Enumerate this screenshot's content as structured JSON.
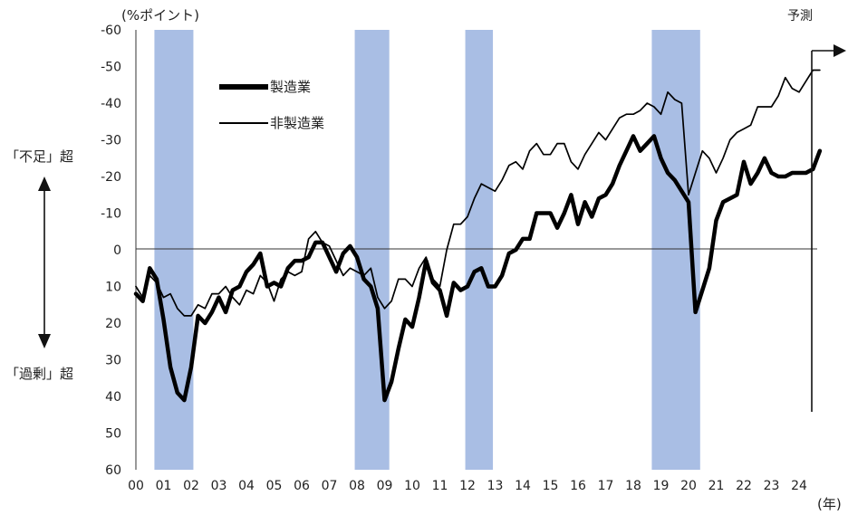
{
  "chart_data": {
    "type": "line",
    "y_unit_label": "(%ポイント)",
    "x_unit_label": "(年)",
    "forecast_label": "予測",
    "side_label_top": "「不足」超",
    "side_label_bottom": "「過剰」超",
    "ylim": [
      60,
      -60
    ],
    "y_ticks": [
      "-60",
      "-50",
      "-40",
      "-30",
      "-20",
      "-10",
      "0",
      "10",
      "20",
      "30",
      "40",
      "50",
      "60"
    ],
    "x_ticks": [
      "00",
      "01",
      "02",
      "03",
      "04",
      "05",
      "06",
      "07",
      "08",
      "09",
      "10",
      "11",
      "12",
      "13",
      "14",
      "15",
      "16",
      "17",
      "18",
      "19",
      "20",
      "21",
      "22",
      "23",
      "24"
    ],
    "recession_bands": [
      [
        2000.67,
        2002.08
      ],
      [
        2007.92,
        2009.17
      ],
      [
        2011.92,
        2012.92
      ],
      [
        2018.67,
        2020.42
      ]
    ],
    "legend_position": "upper-left",
    "series": [
      {
        "name": "製造業",
        "line_style": "thick",
        "x": [
          2000.0,
          2000.25,
          2000.5,
          2000.75,
          2001.0,
          2001.25,
          2001.5,
          2001.75,
          2002.0,
          2002.25,
          2002.5,
          2002.75,
          2003.0,
          2003.25,
          2003.5,
          2003.75,
          2004.0,
          2004.25,
          2004.5,
          2004.75,
          2005.0,
          2005.25,
          2005.5,
          2005.75,
          2006.0,
          2006.25,
          2006.5,
          2006.75,
          2007.0,
          2007.25,
          2007.5,
          2007.75,
          2008.0,
          2008.25,
          2008.5,
          2008.75,
          2009.0,
          2009.25,
          2009.5,
          2009.75,
          2010.0,
          2010.25,
          2010.5,
          2010.75,
          2011.0,
          2011.25,
          2011.5,
          2011.75,
          2012.0,
          2012.25,
          2012.5,
          2012.75,
          2013.0,
          2013.25,
          2013.5,
          2013.75,
          2014.0,
          2014.25,
          2014.5,
          2014.75,
          2015.0,
          2015.25,
          2015.5,
          2015.75,
          2016.0,
          2016.25,
          2016.5,
          2016.75,
          2017.0,
          2017.25,
          2017.5,
          2017.75,
          2018.0,
          2018.25,
          2018.5,
          2018.75,
          2019.0,
          2019.25,
          2019.5,
          2019.75,
          2020.0,
          2020.25,
          2020.5,
          2020.75,
          2021.0,
          2021.25,
          2021.5,
          2021.75,
          2022.0,
          2022.25,
          2022.5,
          2022.75,
          2023.0,
          2023.25,
          2023.5,
          2023.75,
          2024.0,
          2024.25,
          2024.5,
          2024.75
        ],
        "y": [
          12,
          14,
          5,
          8,
          19,
          32,
          39,
          41,
          32,
          18,
          20,
          17,
          13,
          17,
          11,
          10,
          6,
          4,
          1,
          10,
          9,
          10,
          5,
          3,
          3,
          2,
          -2,
          -2,
          2,
          6,
          1,
          -1,
          2,
          8,
          10,
          16,
          41,
          36,
          27,
          19,
          21,
          13,
          3,
          9,
          11,
          18,
          9,
          11,
          10,
          6,
          5,
          10,
          10,
          7,
          1,
          0,
          -3,
          -3,
          -10,
          -10,
          -10,
          -6,
          -10,
          -15,
          -7,
          -13,
          -9,
          -14,
          -15,
          -18,
          -23,
          -27,
          -31,
          -27,
          -29,
          -31,
          -25,
          -21,
          -19,
          -16,
          -13,
          17,
          11,
          5,
          -8,
          -13,
          -14,
          -15,
          -24,
          -18,
          -21,
          -25,
          -21,
          -20,
          -20,
          -21,
          -21,
          -21,
          -22,
          -27
        ]
      },
      {
        "name": "非製造業",
        "line_style": "thin",
        "x": [
          2000.0,
          2000.25,
          2000.5,
          2000.75,
          2001.0,
          2001.25,
          2001.5,
          2001.75,
          2002.0,
          2002.25,
          2002.5,
          2002.75,
          2003.0,
          2003.25,
          2003.5,
          2003.75,
          2004.0,
          2004.25,
          2004.5,
          2004.75,
          2005.0,
          2005.25,
          2005.5,
          2005.75,
          2006.0,
          2006.25,
          2006.5,
          2006.75,
          2007.0,
          2007.25,
          2007.5,
          2007.75,
          2008.0,
          2008.25,
          2008.5,
          2008.75,
          2009.0,
          2009.25,
          2009.5,
          2009.75,
          2010.0,
          2010.25,
          2010.5,
          2010.75,
          2011.0,
          2011.25,
          2011.5,
          2011.75,
          2012.0,
          2012.25,
          2012.5,
          2012.75,
          2013.0,
          2013.25,
          2013.5,
          2013.75,
          2014.0,
          2014.25,
          2014.5,
          2014.75,
          2015.0,
          2015.25,
          2015.5,
          2015.75,
          2016.0,
          2016.25,
          2016.5,
          2016.75,
          2017.0,
          2017.25,
          2017.5,
          2017.75,
          2018.0,
          2018.25,
          2018.5,
          2018.75,
          2019.0,
          2019.25,
          2019.5,
          2019.75,
          2020.0,
          2020.25,
          2020.5,
          2020.75,
          2021.0,
          2021.25,
          2021.5,
          2021.75,
          2022.0,
          2022.25,
          2022.5,
          2022.75,
          2023.0,
          2023.25,
          2023.5,
          2023.75,
          2024.0,
          2024.25,
          2024.5,
          2024.75
        ],
        "y": [
          10,
          13,
          7,
          9,
          13,
          12,
          16,
          18,
          18,
          15,
          16,
          12,
          12,
          10,
          13,
          15,
          11,
          12,
          7,
          9,
          14,
          8,
          6,
          7,
          6,
          -3,
          -5,
          -2,
          -1,
          3,
          7,
          5,
          6,
          7,
          5,
          13,
          16,
          14,
          8,
          8,
          10,
          5,
          2,
          8,
          10,
          0,
          -7,
          -7,
          -9,
          -14,
          -18,
          -17,
          -16,
          -19,
          -23,
          -24,
          -22,
          -27,
          -29,
          -26,
          -26,
          -29,
          -29,
          -24,
          -22,
          -26,
          -29,
          -32,
          -30,
          -33,
          -36,
          -37,
          -37,
          -38,
          -40,
          -39,
          -37,
          -43,
          -41,
          -40,
          -15,
          -21,
          -27,
          -25,
          -21,
          -25,
          -30,
          -32,
          -33,
          -34,
          -39,
          -39,
          -39,
          -42,
          -47,
          -44,
          -43,
          -46,
          -49,
          -49
        ]
      }
    ]
  }
}
